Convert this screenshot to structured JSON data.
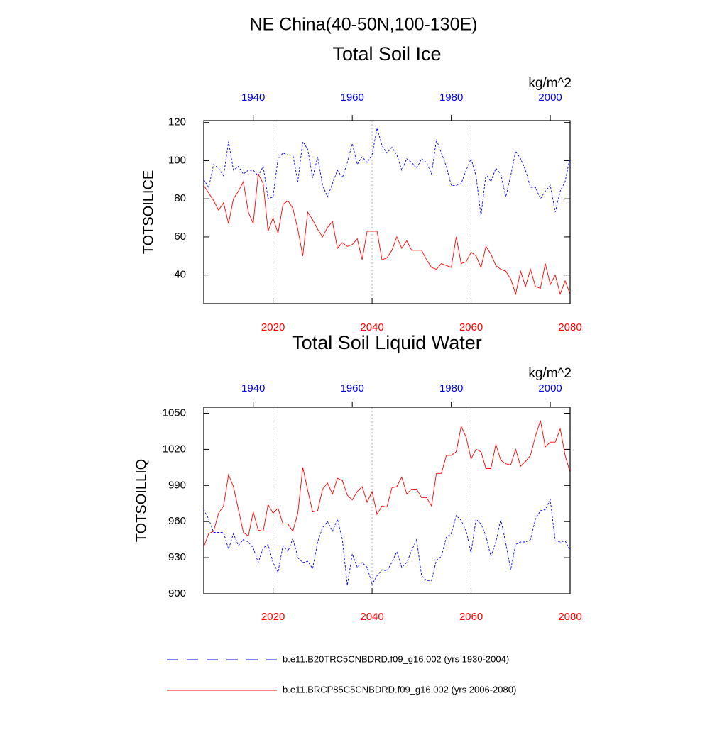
{
  "title": "NE China(40-50N,100-130E)",
  "chart_data": [
    {
      "type": "line",
      "title": "Total Soil Ice",
      "units": "kg/m^2",
      "ylabel": "TOTSOILICE",
      "x": [
        2006,
        2007,
        2008,
        2009,
        2010,
        2011,
        2012,
        2013,
        2014,
        2015,
        2016,
        2017,
        2018,
        2019,
        2020,
        2021,
        2022,
        2023,
        2024,
        2025,
        2026,
        2027,
        2028,
        2029,
        2030,
        2031,
        2032,
        2033,
        2034,
        2035,
        2036,
        2037,
        2038,
        2039,
        2040,
        2041,
        2042,
        2043,
        2044,
        2045,
        2046,
        2047,
        2048,
        2049,
        2050,
        2051,
        2052,
        2053,
        2054,
        2055,
        2056,
        2057,
        2058,
        2059,
        2060,
        2061,
        2062,
        2063,
        2064,
        2065,
        2066,
        2067,
        2068,
        2069,
        2070,
        2071,
        2072,
        2073,
        2074,
        2075,
        2076,
        2077,
        2078,
        2079,
        2080
      ],
      "x2": [
        1930,
        1931,
        1932,
        1933,
        1934,
        1935,
        1936,
        1937,
        1938,
        1939,
        1940,
        1941,
        1942,
        1943,
        1944,
        1945,
        1946,
        1947,
        1948,
        1949,
        1950,
        1951,
        1952,
        1953,
        1954,
        1955,
        1956,
        1957,
        1958,
        1959,
        1960,
        1961,
        1962,
        1963,
        1964,
        1965,
        1966,
        1967,
        1968,
        1969,
        1970,
        1971,
        1972,
        1973,
        1974,
        1975,
        1976,
        1977,
        1978,
        1979,
        1980,
        1981,
        1982,
        1983,
        1984,
        1985,
        1986,
        1987,
        1988,
        1989,
        1990,
        1991,
        1992,
        1993,
        1994,
        1995,
        1996,
        1997,
        1998,
        1999,
        2000,
        2001,
        2002,
        2003,
        2004
      ],
      "xlim": [
        2006,
        2080
      ],
      "xticks": [
        2020,
        2040,
        2060,
        2080
      ],
      "x2lim": [
        1930,
        2004
      ],
      "x2ticks": [
        1940,
        1960,
        1980,
        2000
      ],
      "ylim": [
        25,
        121
      ],
      "yticks": [
        40,
        60,
        80,
        100,
        120
      ],
      "grid": true,
      "series": [
        {
          "name": "b.e11.B20TRC5CNBDRD.f09_g16.002 (yrs 1930-2004)",
          "color": "#0000ff",
          "dash": true,
          "axis": "x2",
          "values": [
            90,
            86,
            98,
            96,
            92,
            110,
            95,
            97,
            93,
            95,
            95,
            92,
            97,
            80,
            81,
            101,
            104,
            103,
            103,
            89,
            110,
            106,
            91,
            102,
            87,
            81,
            88,
            95,
            91,
            99,
            109,
            98,
            102,
            99,
            103,
            117,
            108,
            104,
            107,
            103,
            95,
            101,
            99,
            96,
            101,
            99,
            93,
            111,
            104,
            97,
            87,
            87,
            88,
            95,
            101,
            92,
            71,
            93,
            89,
            96,
            93,
            81,
            92,
            105,
            101,
            95,
            86,
            86,
            80,
            84,
            87,
            73,
            84,
            89,
            102
          ]
        },
        {
          "name": "b.e11.BRCP85C5CNBDRD.f09_g16.002 (yrs 2006-2080)",
          "color": "#ff0000",
          "dash": false,
          "axis": "x",
          "values": [
            87,
            83,
            79,
            74,
            78,
            67,
            80,
            84,
            89,
            73,
            67,
            93,
            88,
            63,
            70,
            62,
            77,
            79,
            75,
            64,
            50,
            73,
            69,
            64,
            60,
            65,
            68,
            54,
            57,
            55,
            56,
            59,
            48,
            63,
            63,
            63,
            48,
            49,
            53,
            60,
            54,
            58,
            53,
            53,
            53,
            48,
            44,
            43,
            46,
            45,
            44,
            60,
            46,
            47,
            52,
            50,
            44,
            55,
            51,
            45,
            43,
            42,
            38,
            30,
            42,
            34,
            43,
            34,
            33,
            46,
            35,
            40,
            30,
            37,
            30
          ]
        }
      ]
    },
    {
      "type": "line",
      "title": "Total Soil Liquid Water",
      "units": "kg/m^2",
      "ylabel": "TOTSOILLIQ",
      "x": [
        2006,
        2007,
        2008,
        2009,
        2010,
        2011,
        2012,
        2013,
        2014,
        2015,
        2016,
        2017,
        2018,
        2019,
        2020,
        2021,
        2022,
        2023,
        2024,
        2025,
        2026,
        2027,
        2028,
        2029,
        2030,
        2031,
        2032,
        2033,
        2034,
        2035,
        2036,
        2037,
        2038,
        2039,
        2040,
        2041,
        2042,
        2043,
        2044,
        2045,
        2046,
        2047,
        2048,
        2049,
        2050,
        2051,
        2052,
        2053,
        2054,
        2055,
        2056,
        2057,
        2058,
        2059,
        2060,
        2061,
        2062,
        2063,
        2064,
        2065,
        2066,
        2067,
        2068,
        2069,
        2070,
        2071,
        2072,
        2073,
        2074,
        2075,
        2076,
        2077,
        2078,
        2079,
        2080
      ],
      "x2": [
        1930,
        1931,
        1932,
        1933,
        1934,
        1935,
        1936,
        1937,
        1938,
        1939,
        1940,
        1941,
        1942,
        1943,
        1944,
        1945,
        1946,
        1947,
        1948,
        1949,
        1950,
        1951,
        1952,
        1953,
        1954,
        1955,
        1956,
        1957,
        1958,
        1959,
        1960,
        1961,
        1962,
        1963,
        1964,
        1965,
        1966,
        1967,
        1968,
        1969,
        1970,
        1971,
        1972,
        1973,
        1974,
        1975,
        1976,
        1977,
        1978,
        1979,
        1980,
        1981,
        1982,
        1983,
        1984,
        1985,
        1986,
        1987,
        1988,
        1989,
        1990,
        1991,
        1992,
        1993,
        1994,
        1995,
        1996,
        1997,
        1998,
        1999,
        2000,
        2001,
        2002,
        2003,
        2004
      ],
      "xlim": [
        2006,
        2080
      ],
      "xticks": [
        2020,
        2040,
        2060,
        2080
      ],
      "x2lim": [
        1930,
        2004
      ],
      "x2ticks": [
        1940,
        1960,
        1980,
        2000
      ],
      "ylim": [
        900,
        1055
      ],
      "yticks": [
        900,
        930,
        960,
        990,
        1020,
        1050
      ],
      "grid": true,
      "series": [
        {
          "color": "#0000ff",
          "dash": true,
          "axis": "x2",
          "values": [
            970,
            962,
            951,
            951,
            951,
            937,
            950,
            940,
            945,
            943,
            938,
            926,
            938,
            941,
            926,
            918,
            940,
            935,
            946,
            930,
            926,
            927,
            921,
            943,
            955,
            960,
            952,
            962,
            945,
            907,
            933,
            922,
            926,
            922,
            908,
            915,
            920,
            919,
            926,
            935,
            922,
            926,
            936,
            945,
            915,
            911,
            911,
            928,
            931,
            947,
            950,
            965,
            961,
            952,
            934,
            962,
            958,
            948,
            931,
            943,
            962,
            942,
            920,
            941,
            943,
            943,
            945,
            962,
            969,
            970,
            978,
            944,
            943,
            944,
            936
          ]
        },
        {
          "color": "#ff0000",
          "dash": false,
          "axis": "x",
          "values": [
            939,
            950,
            952,
            967,
            973,
            999,
            989,
            970,
            951,
            948,
            968,
            953,
            952,
            974,
            967,
            971,
            958,
            958,
            952,
            967,
            1005,
            986,
            968,
            969,
            987,
            992,
            983,
            996,
            994,
            982,
            978,
            985,
            989,
            976,
            985,
            966,
            973,
            972,
            988,
            989,
            997,
            983,
            987,
            987,
            980,
            980,
            973,
            1000,
            1000,
            1015,
            1015,
            1018,
            1039,
            1030,
            1012,
            1020,
            1018,
            1004,
            1004,
            1024,
            1011,
            1008,
            1007,
            1020,
            1006,
            1010,
            1015,
            1031,
            1044,
            1022,
            1026,
            1026,
            1037,
            1015,
            1001
          ]
        }
      ]
    }
  ]
}
